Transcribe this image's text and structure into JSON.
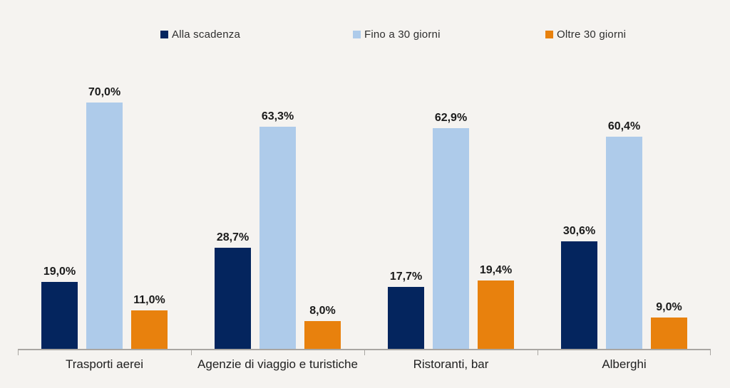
{
  "colors": {
    "background": "#F5F3F0",
    "axis": "#A9A6A2",
    "value_label": "#1A1A1A",
    "category_label": "#1F1F1F",
    "legend_text": "#2E2E2E"
  },
  "legend": {
    "position": "top",
    "items": [
      {
        "label": "Alla scadenza",
        "color": "#04255E"
      },
      {
        "label": "Fino a 30 giorni",
        "color": "#AECBEA"
      },
      {
        "label": "Oltre 30 giorni",
        "color": "#E8810D"
      }
    ]
  },
  "chart_data": {
    "type": "bar",
    "title": "",
    "xlabel": "",
    "ylabel": "",
    "categories": [
      "Trasporti aerei",
      "Agenzie di viaggio e turistiche",
      "Ristoranti, bar",
      "Alberghi"
    ],
    "series": [
      {
        "name": "Alla scadenza",
        "color": "#04255E",
        "values": [
          19.0,
          28.7,
          17.7,
          30.6
        ],
        "labels": [
          "19,0%",
          "28,7%",
          "17,7%",
          "30,6%"
        ]
      },
      {
        "name": "Fino a 30 giorni",
        "color": "#AECBEA",
        "values": [
          70.0,
          63.3,
          62.9,
          60.4
        ],
        "labels": [
          "70,0%",
          "63,3%",
          "62,9%",
          "60,4%"
        ]
      },
      {
        "name": "Oltre 30 giorni",
        "color": "#E8810D",
        "values": [
          11.0,
          8.0,
          19.4,
          9.0
        ],
        "labels": [
          "11,0%",
          "8,0%",
          "19,4%",
          "9,0%"
        ]
      }
    ],
    "value_suffix": "%",
    "decimal_separator": ",",
    "ylim": [
      0,
      79
    ],
    "grid": false,
    "y_axis_visible": false,
    "data_labels": "above-bars",
    "legend_position": "top"
  }
}
